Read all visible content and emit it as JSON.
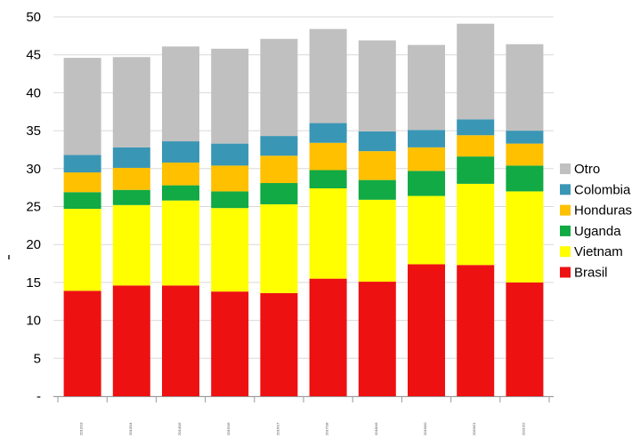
{
  "chart_data": {
    "type": "bar",
    "stacked": true,
    "categories": [
      "2012/13",
      "2013/14",
      "2014/15",
      "2015/16",
      "2016/17",
      "2017/18",
      "2018/19",
      "2019/20",
      "2020/21",
      "2021/22"
    ],
    "category_labels_legible": false,
    "series": [
      {
        "name": "Brasil",
        "color": "#ee1111",
        "values": [
          13.9,
          14.6,
          14.6,
          13.8,
          13.6,
          15.5,
          15.1,
          17.4,
          17.3,
          15.0
        ]
      },
      {
        "name": "Vietnam",
        "color": "#ffff00",
        "values": [
          10.8,
          10.6,
          11.2,
          11.0,
          11.7,
          11.9,
          10.8,
          9.0,
          10.7,
          12.0
        ]
      },
      {
        "name": "Uganda",
        "color": "#11aa44",
        "values": [
          2.2,
          2.0,
          2.0,
          2.2,
          2.8,
          2.4,
          2.6,
          3.3,
          3.6,
          3.4
        ]
      },
      {
        "name": "Honduras",
        "color": "#ffc000",
        "values": [
          2.6,
          2.9,
          3.0,
          3.4,
          3.6,
          3.6,
          3.8,
          3.1,
          2.8,
          2.9
        ]
      },
      {
        "name": "Colombia",
        "color": "#3a96b5",
        "values": [
          2.3,
          2.7,
          2.8,
          2.9,
          2.6,
          2.6,
          2.6,
          2.3,
          2.1,
          1.7
        ]
      },
      {
        "name": "Otro",
        "color": "#c0c0c0",
        "values": [
          12.8,
          11.9,
          12.5,
          12.5,
          12.8,
          12.4,
          12.0,
          11.2,
          12.6,
          11.4
        ]
      }
    ],
    "ylim": [
      0,
      50
    ],
    "yticks": [
      "-",
      "5",
      "10",
      "15",
      "20",
      "25",
      "30",
      "35",
      "40",
      "45",
      "50"
    ],
    "grid": true,
    "legend_position": "right",
    "legend_order": [
      "Otro",
      "Colombia",
      "Honduras",
      "Uganda",
      "Vietnam",
      "Brasil"
    ]
  }
}
